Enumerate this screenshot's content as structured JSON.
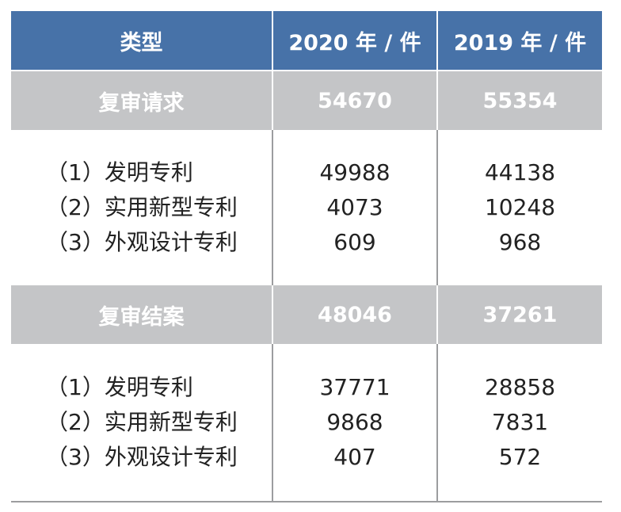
{
  "header": {
    "col_type": "类型",
    "col_2020": "2020 年 / 件",
    "col_2019": "2019 年 / 件"
  },
  "sections": [
    {
      "title": "复审请求",
      "total_2020": "54670",
      "total_2019": "55354",
      "items": [
        {
          "label": "（1）发明专利",
          "v2020": "49988",
          "v2019": "44138"
        },
        {
          "label": "（2）实用新型专利",
          "v2020": "4073",
          "v2019": "10248"
        },
        {
          "label": "（3）外观设计专利",
          "v2020": "609",
          "v2019": "968"
        }
      ]
    },
    {
      "title": "复审结案",
      "total_2020": "48046",
      "total_2019": "37261",
      "items": [
        {
          "label": "（1）发明专利",
          "v2020": "37771",
          "v2019": "28858"
        },
        {
          "label": "（2）实用新型专利",
          "v2020": "9868",
          "v2019": "7831"
        },
        {
          "label": "（3）外观设计专利",
          "v2020": "407",
          "v2019": "572"
        }
      ]
    }
  ],
  "colors": {
    "header_bg": "#4772a8",
    "section_bg": "#c4c5c7",
    "grid_line": "#9c9d9f"
  }
}
